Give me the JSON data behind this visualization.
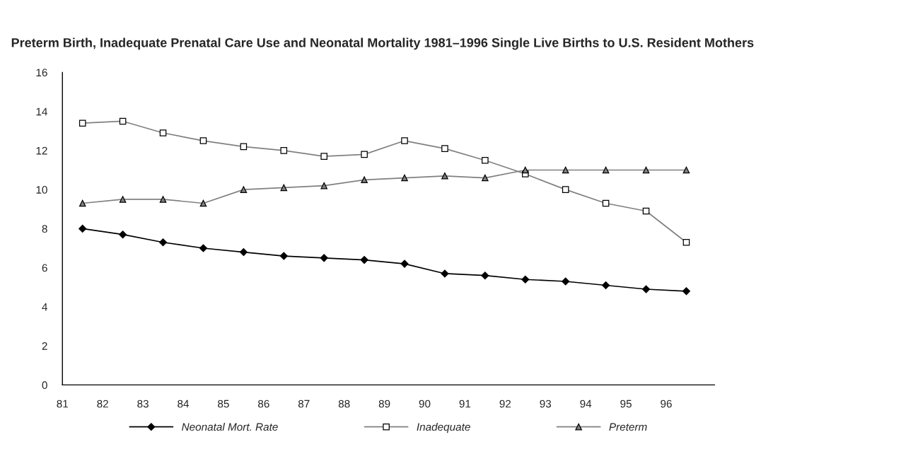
{
  "chart_data": {
    "type": "line",
    "title": "Preterm Birth, Inadequate Prenatal Care Use and Neonatal Mortality 1981–1996 Single Live Births to U.S. Resident Mothers",
    "x": [
      81.5,
      82.5,
      83.5,
      84.5,
      85.5,
      86.5,
      87.5,
      88.5,
      89.5,
      90.5,
      91.5,
      92.5,
      93.5,
      94.5,
      95.5,
      96.5
    ],
    "series": [
      {
        "name": "Neonatal Mort. Rate",
        "color": "#000000",
        "marker": "diamond",
        "values": [
          8.0,
          7.7,
          7.3,
          7.0,
          6.8,
          6.6,
          6.5,
          6.4,
          6.2,
          5.7,
          5.6,
          5.4,
          5.3,
          5.1,
          4.9,
          4.8
        ]
      },
      {
        "name": "Inadequate",
        "color": "#808080",
        "marker": "square",
        "values": [
          13.4,
          13.5,
          12.9,
          12.5,
          12.2,
          12.0,
          11.7,
          11.8,
          12.5,
          12.1,
          11.5,
          10.8,
          10.0,
          9.3,
          8.9,
          7.3
        ]
      },
      {
        "name": "Preterm",
        "color": "#808080",
        "marker": "triangle",
        "values": [
          9.3,
          9.5,
          9.5,
          9.3,
          10.0,
          10.1,
          10.2,
          10.5,
          10.6,
          10.7,
          10.6,
          11.0,
          11.0,
          11.0,
          11.0,
          11.0
        ]
      }
    ],
    "xlim": [
      81,
      97.2
    ],
    "xticks": [
      81,
      82,
      83,
      84,
      85,
      86,
      87,
      88,
      89,
      90,
      91,
      92,
      93,
      94,
      95,
      96
    ],
    "ylim": [
      0,
      16
    ],
    "yticks": [
      0,
      2,
      4,
      6,
      8,
      10,
      12,
      14,
      16
    ],
    "grid": false,
    "legend": "bottom",
    "line_style": "solid"
  }
}
